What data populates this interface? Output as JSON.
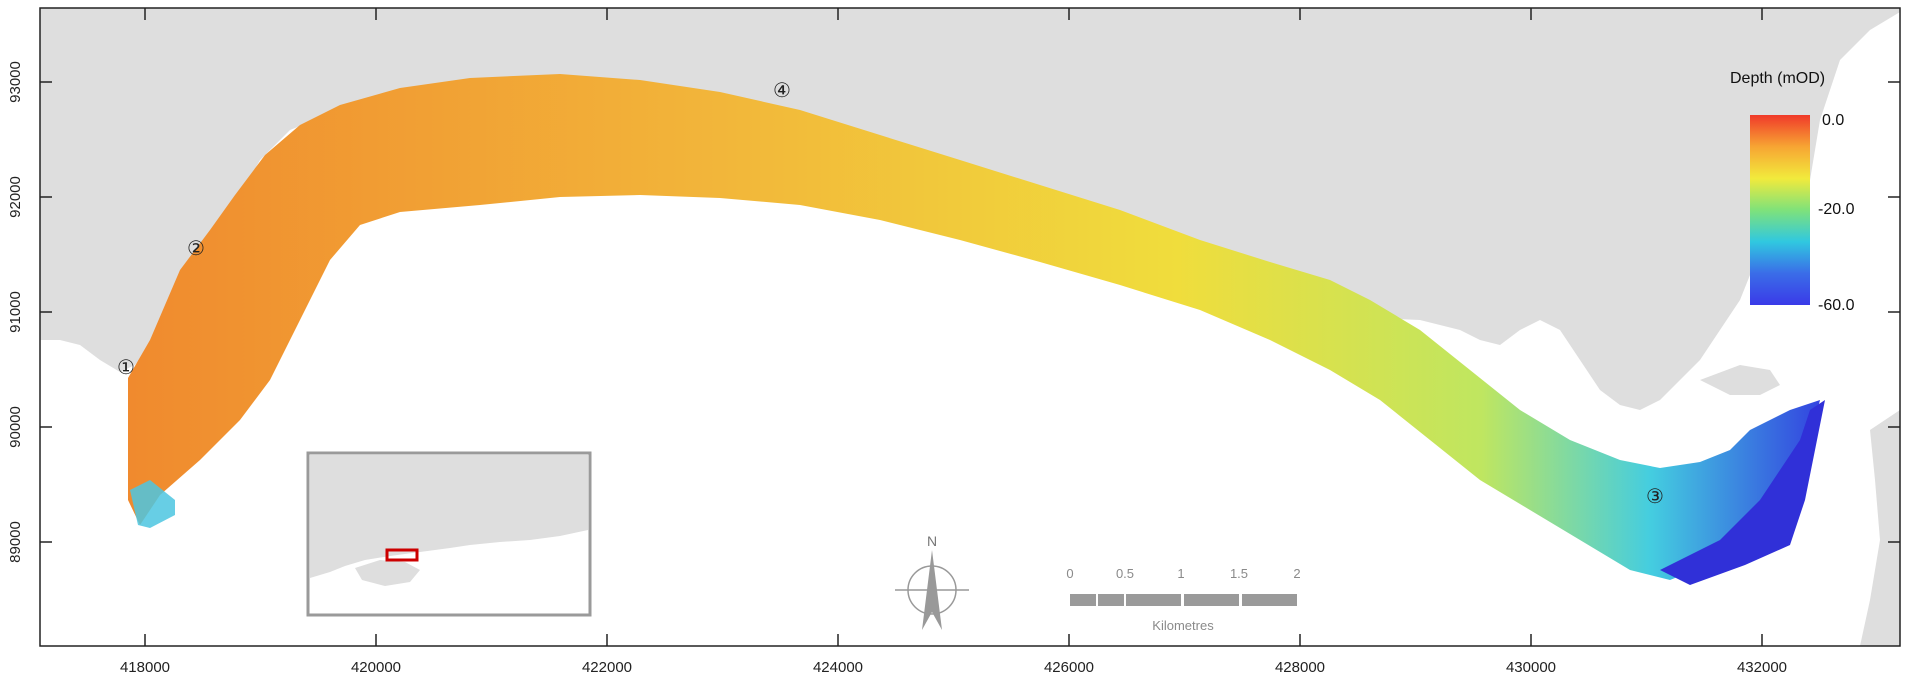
{
  "map": {
    "x_ticks": [
      "418000",
      "420000",
      "422000",
      "424000",
      "426000",
      "428000",
      "430000",
      "432000"
    ],
    "y_ticks": [
      "93000",
      "92000",
      "91000",
      "90000",
      "89000"
    ],
    "colors": {
      "land": "#dedede",
      "sea": "#ffffff",
      "frame": "#222222",
      "inset_box": "#cc0000",
      "inset_border": "#9a9a9a"
    }
  },
  "legend": {
    "title": "Depth (mOD)",
    "labels": [
      "0.0",
      "-20.0",
      "-60.0"
    ],
    "gradient": [
      "#f03a2a",
      "#f7a533",
      "#f2ea3c",
      "#7fe27a",
      "#30c8e0",
      "#3a6de8",
      "#3a3ae8"
    ]
  },
  "sites": [
    "①",
    "②",
    "③",
    "④"
  ],
  "north_arrow": {
    "label": "N"
  },
  "scale_bar": {
    "labels": [
      "0",
      "0.5",
      "1",
      "1.5",
      "2"
    ],
    "unit": "Kilometres"
  }
}
